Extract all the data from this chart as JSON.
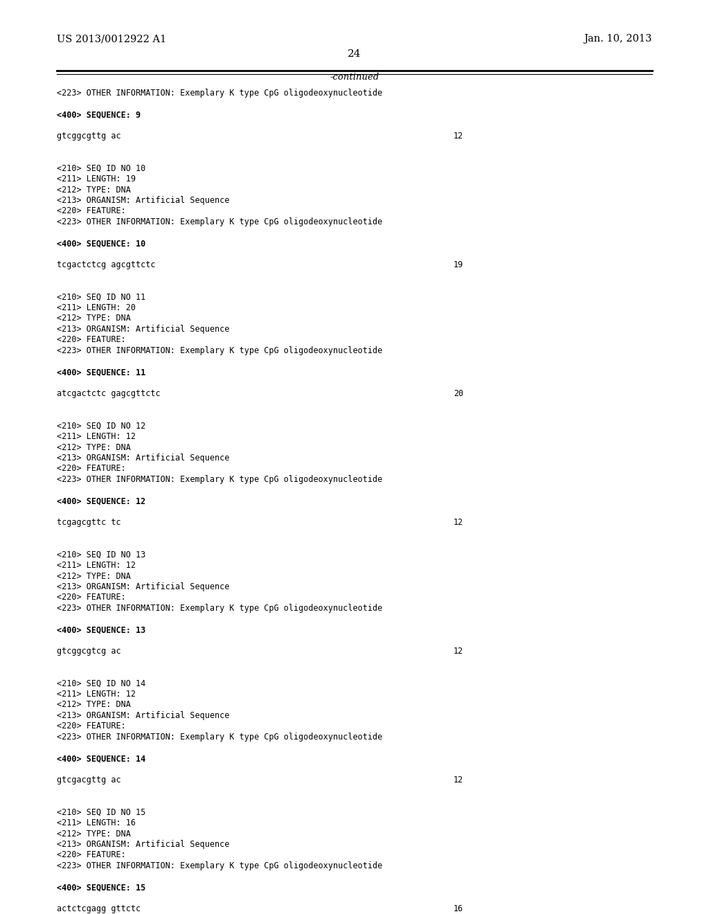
{
  "bg_color": "#ffffff",
  "header_left": "US 2013/0012922 A1",
  "header_right": "Jan. 10, 2013",
  "page_number": "24",
  "continued_label": "-continued",
  "content_lines": [
    {
      "text": "<223> OTHER INFORMATION: Exemplary K type CpG oligodeoxynucleotide",
      "style": "mono",
      "size": 8.5
    },
    {
      "text": "",
      "style": "mono",
      "size": 8.5
    },
    {
      "text": "<400> SEQUENCE: 9",
      "style": "mono_bold",
      "size": 8.5
    },
    {
      "text": "",
      "style": "mono",
      "size": 8.5
    },
    {
      "text": "gtcggcgttg ac",
      "style": "mono",
      "size": 8.5,
      "right_text": "12"
    },
    {
      "text": "",
      "style": "mono",
      "size": 8.5
    },
    {
      "text": "",
      "style": "mono",
      "size": 8.5
    },
    {
      "text": "<210> SEQ ID NO 10",
      "style": "mono",
      "size": 8.5
    },
    {
      "text": "<211> LENGTH: 19",
      "style": "mono",
      "size": 8.5
    },
    {
      "text": "<212> TYPE: DNA",
      "style": "mono",
      "size": 8.5
    },
    {
      "text": "<213> ORGANISM: Artificial Sequence",
      "style": "mono",
      "size": 8.5
    },
    {
      "text": "<220> FEATURE:",
      "style": "mono",
      "size": 8.5
    },
    {
      "text": "<223> OTHER INFORMATION: Exemplary K type CpG oligodeoxynucleotide",
      "style": "mono",
      "size": 8.5
    },
    {
      "text": "",
      "style": "mono",
      "size": 8.5
    },
    {
      "text": "<400> SEQUENCE: 10",
      "style": "mono_bold",
      "size": 8.5
    },
    {
      "text": "",
      "style": "mono",
      "size": 8.5
    },
    {
      "text": "tcgactctcg agcgttctc",
      "style": "mono",
      "size": 8.5,
      "right_text": "19"
    },
    {
      "text": "",
      "style": "mono",
      "size": 8.5
    },
    {
      "text": "",
      "style": "mono",
      "size": 8.5
    },
    {
      "text": "<210> SEQ ID NO 11",
      "style": "mono",
      "size": 8.5
    },
    {
      "text": "<211> LENGTH: 20",
      "style": "mono",
      "size": 8.5
    },
    {
      "text": "<212> TYPE: DNA",
      "style": "mono",
      "size": 8.5
    },
    {
      "text": "<213> ORGANISM: Artificial Sequence",
      "style": "mono",
      "size": 8.5
    },
    {
      "text": "<220> FEATURE:",
      "style": "mono",
      "size": 8.5
    },
    {
      "text": "<223> OTHER INFORMATION: Exemplary K type CpG oligodeoxynucleotide",
      "style": "mono",
      "size": 8.5
    },
    {
      "text": "",
      "style": "mono",
      "size": 8.5
    },
    {
      "text": "<400> SEQUENCE: 11",
      "style": "mono_bold",
      "size": 8.5
    },
    {
      "text": "",
      "style": "mono",
      "size": 8.5
    },
    {
      "text": "atcgactctc gagcgttctc",
      "style": "mono",
      "size": 8.5,
      "right_text": "20"
    },
    {
      "text": "",
      "style": "mono",
      "size": 8.5
    },
    {
      "text": "",
      "style": "mono",
      "size": 8.5
    },
    {
      "text": "<210> SEQ ID NO 12",
      "style": "mono",
      "size": 8.5
    },
    {
      "text": "<211> LENGTH: 12",
      "style": "mono",
      "size": 8.5
    },
    {
      "text": "<212> TYPE: DNA",
      "style": "mono",
      "size": 8.5
    },
    {
      "text": "<213> ORGANISM: Artificial Sequence",
      "style": "mono",
      "size": 8.5
    },
    {
      "text": "<220> FEATURE:",
      "style": "mono",
      "size": 8.5
    },
    {
      "text": "<223> OTHER INFORMATION: Exemplary K type CpG oligodeoxynucleotide",
      "style": "mono",
      "size": 8.5
    },
    {
      "text": "",
      "style": "mono",
      "size": 8.5
    },
    {
      "text": "<400> SEQUENCE: 12",
      "style": "mono_bold",
      "size": 8.5
    },
    {
      "text": "",
      "style": "mono",
      "size": 8.5
    },
    {
      "text": "tcgagcgttc tc",
      "style": "mono",
      "size": 8.5,
      "right_text": "12"
    },
    {
      "text": "",
      "style": "mono",
      "size": 8.5
    },
    {
      "text": "",
      "style": "mono",
      "size": 8.5
    },
    {
      "text": "<210> SEQ ID NO 13",
      "style": "mono",
      "size": 8.5
    },
    {
      "text": "<211> LENGTH: 12",
      "style": "mono",
      "size": 8.5
    },
    {
      "text": "<212> TYPE: DNA",
      "style": "mono",
      "size": 8.5
    },
    {
      "text": "<213> ORGANISM: Artificial Sequence",
      "style": "mono",
      "size": 8.5
    },
    {
      "text": "<220> FEATURE:",
      "style": "mono",
      "size": 8.5
    },
    {
      "text": "<223> OTHER INFORMATION: Exemplary K type CpG oligodeoxynucleotide",
      "style": "mono",
      "size": 8.5
    },
    {
      "text": "",
      "style": "mono",
      "size": 8.5
    },
    {
      "text": "<400> SEQUENCE: 13",
      "style": "mono_bold",
      "size": 8.5
    },
    {
      "text": "",
      "style": "mono",
      "size": 8.5
    },
    {
      "text": "gtcggcgtcg ac",
      "style": "mono",
      "size": 8.5,
      "right_text": "12"
    },
    {
      "text": "",
      "style": "mono",
      "size": 8.5
    },
    {
      "text": "",
      "style": "mono",
      "size": 8.5
    },
    {
      "text": "<210> SEQ ID NO 14",
      "style": "mono",
      "size": 8.5
    },
    {
      "text": "<211> LENGTH: 12",
      "style": "mono",
      "size": 8.5
    },
    {
      "text": "<212> TYPE: DNA",
      "style": "mono",
      "size": 8.5
    },
    {
      "text": "<213> ORGANISM: Artificial Sequence",
      "style": "mono",
      "size": 8.5
    },
    {
      "text": "<220> FEATURE:",
      "style": "mono",
      "size": 8.5
    },
    {
      "text": "<223> OTHER INFORMATION: Exemplary K type CpG oligodeoxynucleotide",
      "style": "mono",
      "size": 8.5
    },
    {
      "text": "",
      "style": "mono",
      "size": 8.5
    },
    {
      "text": "<400> SEQUENCE: 14",
      "style": "mono_bold",
      "size": 8.5
    },
    {
      "text": "",
      "style": "mono",
      "size": 8.5
    },
    {
      "text": "gtcgacgttg ac",
      "style": "mono",
      "size": 8.5,
      "right_text": "12"
    },
    {
      "text": "",
      "style": "mono",
      "size": 8.5
    },
    {
      "text": "",
      "style": "mono",
      "size": 8.5
    },
    {
      "text": "<210> SEQ ID NO 15",
      "style": "mono",
      "size": 8.5
    },
    {
      "text": "<211> LENGTH: 16",
      "style": "mono",
      "size": 8.5
    },
    {
      "text": "<212> TYPE: DNA",
      "style": "mono",
      "size": 8.5
    },
    {
      "text": "<213> ORGANISM: Artificial Sequence",
      "style": "mono",
      "size": 8.5
    },
    {
      "text": "<220> FEATURE:",
      "style": "mono",
      "size": 8.5
    },
    {
      "text": "<223> OTHER INFORMATION: Exemplary K type CpG oligodeoxynucleotide",
      "style": "mono",
      "size": 8.5
    },
    {
      "text": "",
      "style": "mono",
      "size": 8.5
    },
    {
      "text": "<400> SEQUENCE: 15",
      "style": "mono_bold",
      "size": 8.5
    },
    {
      "text": "",
      "style": "mono",
      "size": 8.5
    },
    {
      "text": "actctcgagg gttctc",
      "style": "mono",
      "size": 8.5,
      "right_text": "16"
    }
  ]
}
